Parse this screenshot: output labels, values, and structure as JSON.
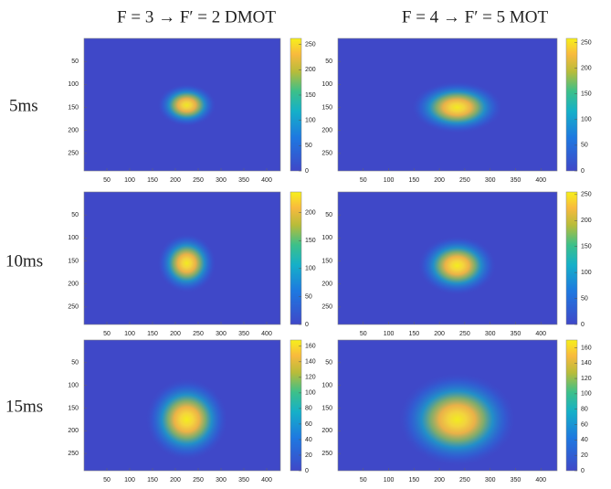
{
  "column_titles": [
    "F = 3 → F′ = 2   DMOT",
    "F = 4 → F′ = 5   MOT"
  ],
  "row_labels": [
    "5ms",
    "10ms",
    "15ms"
  ],
  "chart_data": [
    {
      "type": "heatmap",
      "xlim": [
        0,
        430
      ],
      "ylim": [
        0,
        288
      ],
      "y_reversed": true,
      "xticks": [
        50,
        100,
        150,
        200,
        250,
        300,
        350,
        400
      ],
      "yticks": [
        50,
        100,
        150,
        200,
        250
      ],
      "clim": [
        0,
        262
      ],
      "cticks": [
        0,
        50,
        100,
        150,
        200,
        250
      ],
      "spot": {
        "x": 225,
        "y": 145,
        "sx": 25,
        "sy": 18,
        "value": 250
      }
    },
    {
      "type": "heatmap",
      "xlim": [
        0,
        432
      ],
      "ylim": [
        0,
        288
      ],
      "y_reversed": true,
      "xticks": [
        50,
        100,
        150,
        200,
        250,
        300,
        350,
        400
      ],
      "yticks": [
        50,
        100,
        150,
        200,
        250
      ],
      "clim": [
        0,
        258
      ],
      "cticks": [
        0,
        50,
        100,
        150,
        200,
        250
      ],
      "spot": {
        "x": 235,
        "y": 150,
        "sx": 35,
        "sy": 22,
        "value": 250
      }
    },
    {
      "type": "heatmap",
      "xlim": [
        0,
        430
      ],
      "ylim": [
        0,
        288
      ],
      "y_reversed": true,
      "xticks": [
        50,
        100,
        150,
        200,
        250,
        300,
        350,
        400
      ],
      "yticks": [
        50,
        100,
        150,
        200,
        250
      ],
      "clim": [
        0,
        237
      ],
      "cticks": [
        0,
        50,
        100,
        150,
        200
      ],
      "spot": {
        "x": 225,
        "y": 155,
        "sx": 25,
        "sy": 25,
        "value": 230
      }
    },
    {
      "type": "heatmap",
      "xlim": [
        0,
        432
      ],
      "ylim": [
        0,
        288
      ],
      "y_reversed": true,
      "xticks": [
        50,
        100,
        150,
        200,
        250,
        300,
        350,
        400
      ],
      "yticks": [
        50,
        100,
        150,
        200,
        250
      ],
      "clim": [
        0,
        255
      ],
      "cticks": [
        0,
        50,
        100,
        150,
        200,
        250
      ],
      "spot": {
        "x": 235,
        "y": 160,
        "sx": 30,
        "sy": 25,
        "value": 250
      }
    },
    {
      "type": "heatmap",
      "xlim": [
        0,
        430
      ],
      "ylim": [
        0,
        288
      ],
      "y_reversed": true,
      "xticks": [
        50,
        100,
        150,
        200,
        250,
        300,
        350,
        400
      ],
      "yticks": [
        50,
        100,
        150,
        200,
        250
      ],
      "clim": [
        0,
        168
      ],
      "cticks": [
        0,
        20,
        40,
        60,
        80,
        100,
        120,
        140,
        160
      ],
      "spot": {
        "x": 225,
        "y": 175,
        "sx": 35,
        "sy": 35,
        "value": 165
      }
    },
    {
      "type": "heatmap",
      "xlim": [
        0,
        432
      ],
      "ylim": [
        0,
        288
      ],
      "y_reversed": true,
      "xticks": [
        50,
        100,
        150,
        200,
        250,
        300,
        350,
        400
      ],
      "yticks": [
        50,
        100,
        150,
        200,
        250
      ],
      "clim": [
        0,
        170
      ],
      "cticks": [
        0,
        20,
        40,
        60,
        80,
        100,
        120,
        140,
        160
      ],
      "spot": {
        "x": 235,
        "y": 175,
        "sx": 45,
        "sy": 40,
        "value": 165
      }
    }
  ]
}
